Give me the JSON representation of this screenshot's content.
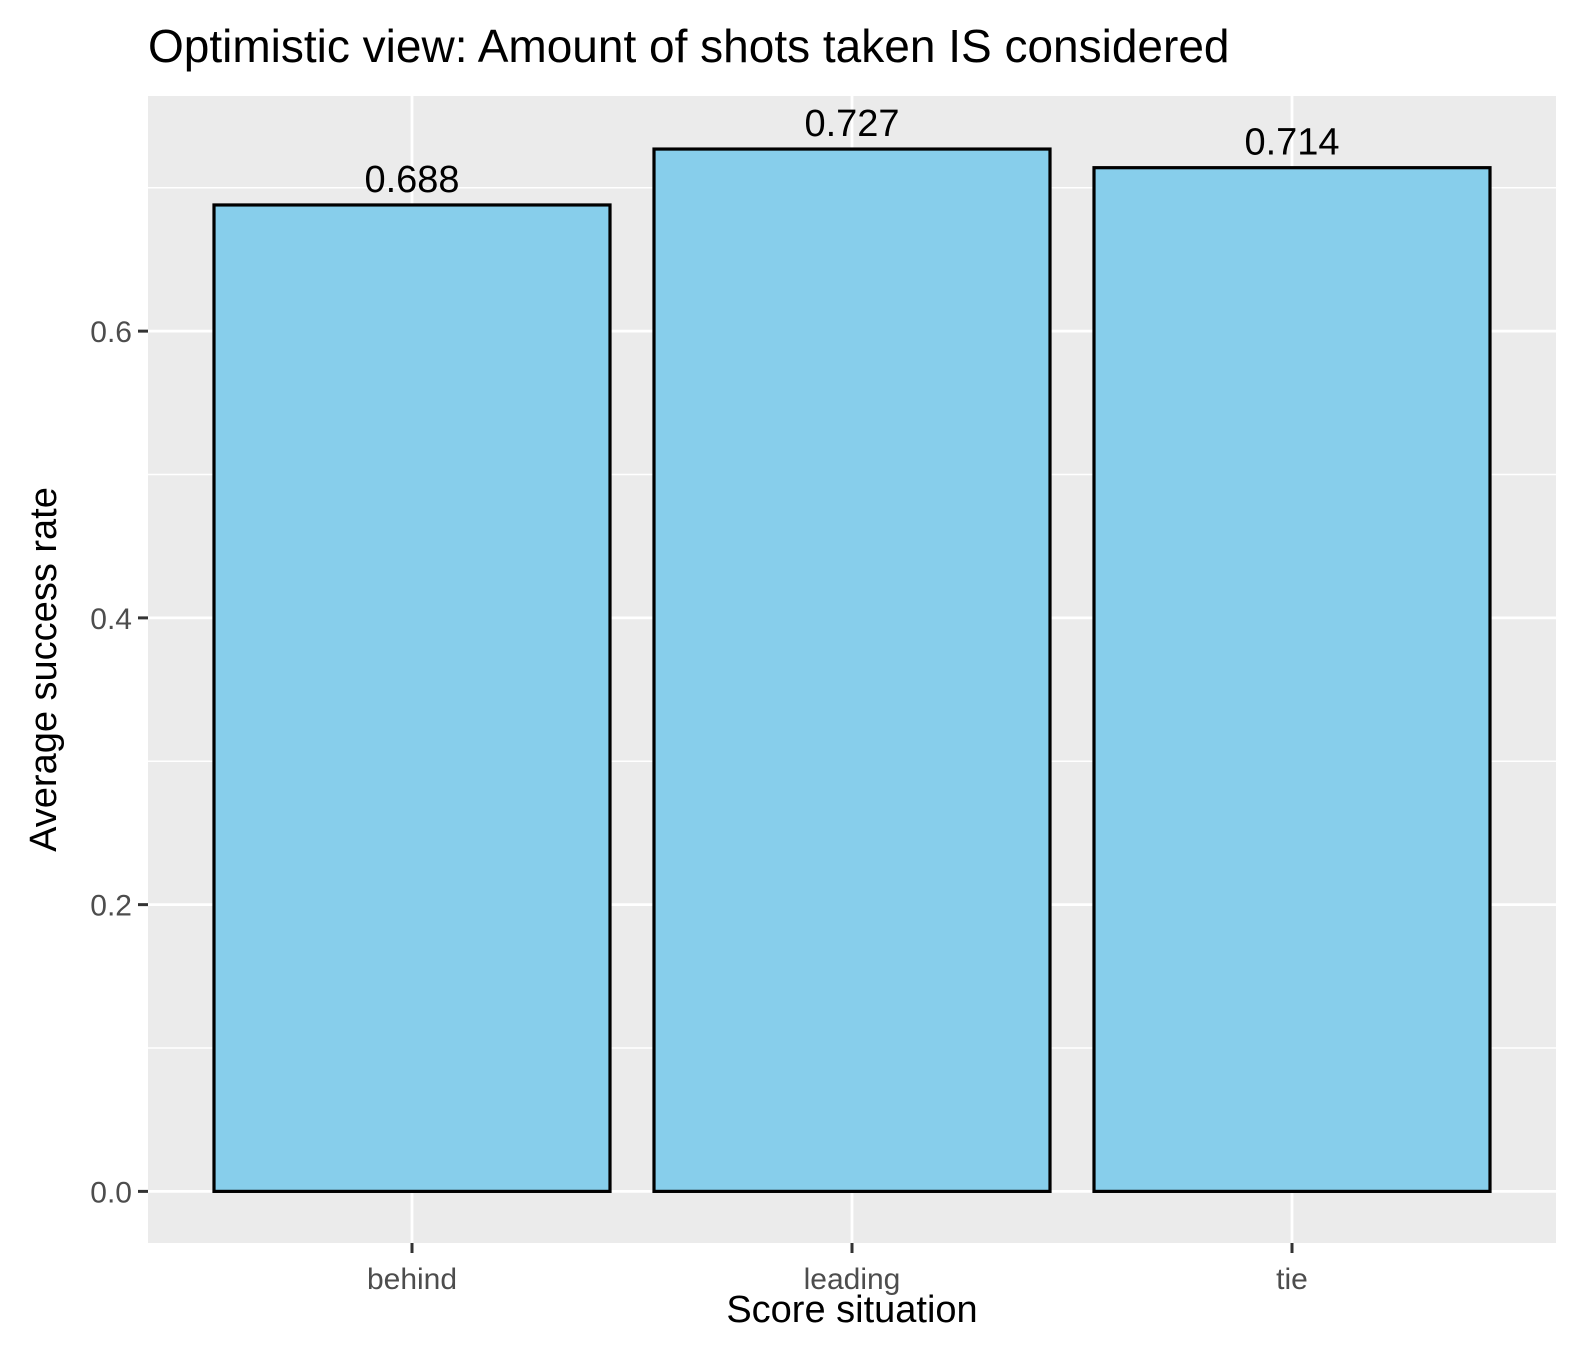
{
  "chart_data": {
    "type": "bar",
    "title": "Optimistic view: Amount of shots taken IS considered",
    "xlabel": "Score situation",
    "ylabel": "Average success rate",
    "categories": [
      "behind",
      "leading",
      "tie"
    ],
    "values": [
      0.688,
      0.727,
      0.714
    ],
    "data_labels": [
      "0.688",
      "0.727",
      "0.714"
    ],
    "yticks": [
      0.0,
      0.2,
      0.4,
      0.6
    ],
    "ytick_labels": [
      "0.0",
      "0.2",
      "0.4",
      "0.6"
    ],
    "ylim": [
      -0.036,
      0.764
    ],
    "grid": true,
    "legend": "none",
    "colors": {
      "panel_background": "#ebebeb",
      "grid_major": "#ffffff",
      "bar_fill": "#87ceeb",
      "bar_outline": "#000000",
      "tick_text": "#4d4d4d",
      "tick_mark": "#333333"
    }
  }
}
